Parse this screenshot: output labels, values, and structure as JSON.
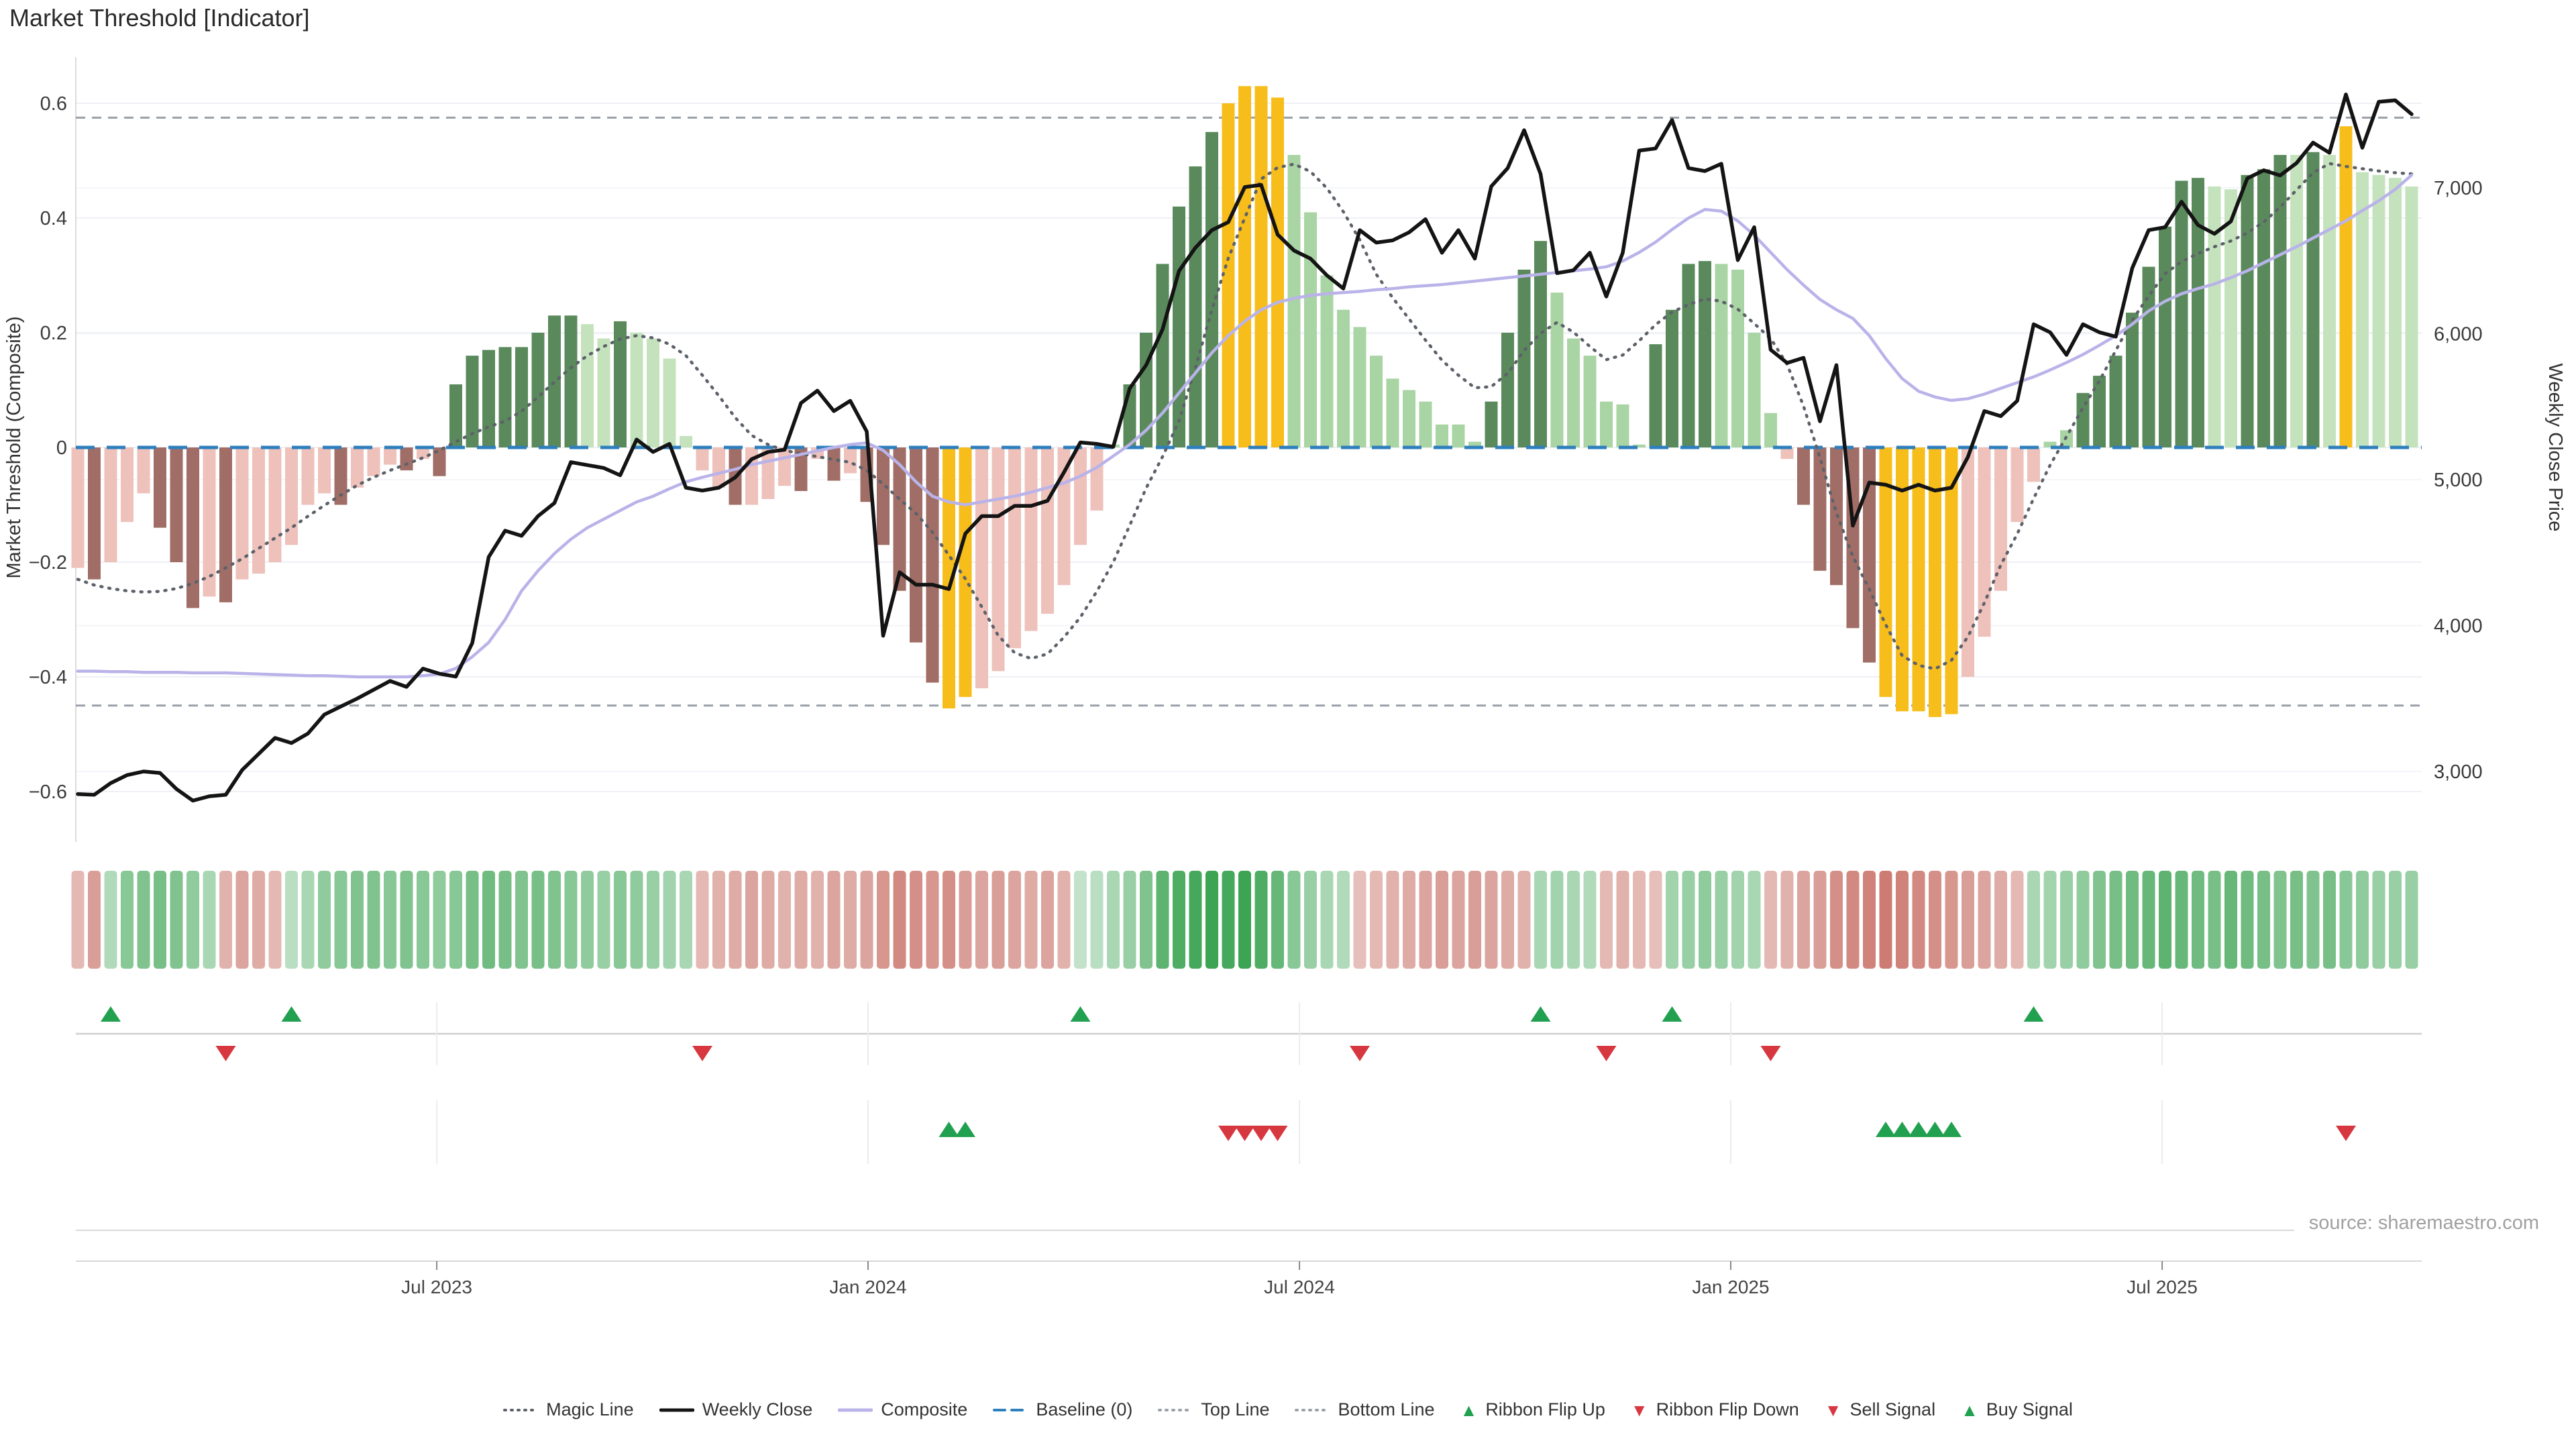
{
  "title": "Market Threshold [Indicator]",
  "source_credit": "source: sharemaestro.com",
  "axes": {
    "left_title": "Market Threshold (Composite)",
    "right_title": "Weekly Close Price",
    "left_ticks": [
      {
        "label": "0.6",
        "value": 0.6
      },
      {
        "label": "0.4",
        "value": 0.4
      },
      {
        "label": "0.2",
        "value": 0.2
      },
      {
        "label": "0",
        "value": 0
      },
      {
        "label": "−0.2",
        "value": -0.2
      },
      {
        "label": "−0.4",
        "value": -0.4
      },
      {
        "label": "−0.6",
        "value": -0.6
      }
    ],
    "right_ticks": [
      {
        "label": "7,000",
        "value": 7000
      },
      {
        "label": "6,000",
        "value": 6000
      },
      {
        "label": "5,000",
        "value": 5000
      },
      {
        "label": "4,000",
        "value": 4000
      },
      {
        "label": "3,000",
        "value": 3000
      }
    ],
    "x_ticks": [
      {
        "label": "Jul 2023",
        "week": 21.84
      },
      {
        "label": "Jan 2024",
        "week": 48.08
      },
      {
        "label": "Jul 2024",
        "week": 74.33
      },
      {
        "label": "Jan 2025",
        "week": 100.57
      },
      {
        "label": "Jul 2025",
        "week": 126.82
      }
    ]
  },
  "legend": [
    {
      "label": "Magic Line",
      "swatch": "dot",
      "color": "#5d6169"
    },
    {
      "label": "Weekly Close",
      "swatch": "solid",
      "color": "#141414"
    },
    {
      "label": "Composite",
      "swatch": "solid",
      "color": "#b9b3e9"
    },
    {
      "label": "Baseline (0)",
      "swatch": "dash",
      "color": "#2e7fbe"
    },
    {
      "label": "Top Line",
      "swatch": "dot",
      "color": "#9aa0a8"
    },
    {
      "label": "Bottom Line",
      "swatch": "dot",
      "color": "#9aa0a8"
    },
    {
      "label": "Ribbon Flip Up",
      "swatch": "up",
      "color": "#21a04f",
      "glyph": "▲"
    },
    {
      "label": "Ribbon Flip Down",
      "swatch": "down",
      "color": "#d7373f",
      "glyph": "▼"
    },
    {
      "label": "Sell Signal",
      "swatch": "down",
      "color": "#d7373f",
      "glyph": "▼"
    },
    {
      "label": "Buy Signal",
      "swatch": "up",
      "color": "#21a04f",
      "glyph": "▲"
    }
  ],
  "colors": {
    "bar_pale_pink": "#eec1bb",
    "bar_dark_mauve": "#a06e66",
    "bar_light_green": "#a9d4a3",
    "bar_pale_green": "#c4e3bd",
    "bar_dark_green": "#5a8a5c",
    "bar_yellow": "#f6bd1b",
    "close_line": "#141414",
    "composite_line": "#b9b3e9",
    "magic_line": "#5d6169",
    "baseline": "#2e7fbe",
    "band_line": "#9aa0a8",
    "grid": "#eef0f5",
    "grid_right": "#f4f5fa",
    "spine": "#dcdcdc",
    "panel_line": "#cfcfcf",
    "panel_grid": "#ececec",
    "axis_line": "#d8d8d8",
    "tick_text": "#3a3a3a",
    "source_text": "#a0a0a0",
    "signal_green": "#21a04f",
    "signal_red": "#d7373f",
    "ribbon_green": "#35a04d",
    "ribbon_red": "#bf5a4e"
  },
  "chart_data": {
    "type": "combo",
    "weeks": 143,
    "left_axis_range": [
      -0.69,
      0.68
    ],
    "right_axis_range": [
      2520,
      7900
    ],
    "top_line": 0.575,
    "bottom_line": -0.45,
    "baseline": 0,
    "grid": true,
    "legend_position": "bottom",
    "threshold_bars": {
      "values": [
        -0.21,
        -0.23,
        -0.2,
        -0.13,
        -0.08,
        -0.14,
        -0.2,
        -0.28,
        -0.26,
        -0.27,
        -0.23,
        -0.22,
        -0.2,
        -0.17,
        -0.1,
        -0.08,
        -0.1,
        -0.07,
        -0.05,
        -0.03,
        -0.04,
        -0.02,
        -0.05,
        0.11,
        0.16,
        0.17,
        0.175,
        0.175,
        0.2,
        0.23,
        0.23,
        0.215,
        0.19,
        0.22,
        0.2,
        0.19,
        0.155,
        0.02,
        -0.04,
        -0.07,
        -0.1,
        -0.1,
        -0.09,
        -0.067,
        -0.076,
        -0.02,
        -0.058,
        -0.045,
        -0.095,
        -0.17,
        -0.25,
        -0.34,
        -0.41,
        -0.455,
        -0.435,
        -0.42,
        -0.39,
        -0.35,
        -0.32,
        -0.29,
        -0.24,
        -0.17,
        -0.11,
        0.005,
        0.11,
        0.2,
        0.32,
        0.42,
        0.49,
        0.55,
        0.6,
        0.63,
        0.63,
        0.61,
        0.51,
        0.41,
        0.3,
        0.24,
        0.21,
        0.16,
        0.12,
        0.1,
        0.08,
        0.04,
        0.04,
        0.01,
        0.08,
        0.2,
        0.31,
        0.36,
        0.27,
        0.19,
        0.16,
        0.08,
        0.075,
        0.005,
        0.18,
        0.24,
        0.32,
        0.325,
        0.32,
        0.31,
        0.2,
        0.06,
        -0.02,
        -0.1,
        -0.215,
        -0.24,
        -0.315,
        -0.375,
        -0.435,
        -0.46,
        -0.46,
        -0.47,
        -0.465,
        -0.4,
        -0.33,
        -0.25,
        -0.13,
        -0.06,
        0.01,
        0.03,
        0.095,
        0.125,
        0.16,
        0.235,
        0.315,
        0.385,
        0.465,
        0.47,
        0.455,
        0.45,
        0.475,
        0.485,
        0.51,
        0.51,
        0.515,
        0.51,
        0.56,
        0.48,
        0.475,
        0.47,
        0.455
      ],
      "color_codes": "pPpppPPPpPppppppPpppPpPGGGGGGGGllGllllppPpppPpPpPPPPPyyppppppppgGGGGGGyyyyggggggggggggGGGGggggggGGGGggggpPPPPPyyyyypppppggGGGGGGGGllGGGlGlyllll",
      "color_legend": {
        "p": "bar_pale_pink",
        "P": "bar_dark_mauve",
        "g": "bar_light_green",
        "l": "bar_pale_green",
        "G": "bar_dark_green",
        "y": "bar_yellow"
      }
    },
    "weekly_close": [
      2845,
      2840,
      2920,
      2975,
      3000,
      2990,
      2880,
      2800,
      2830,
      2840,
      3010,
      3120,
      3230,
      3195,
      3260,
      3390,
      3445,
      3500,
      3560,
      3620,
      3580,
      3705,
      3670,
      3650,
      3880,
      4470,
      4650,
      4615,
      4750,
      4840,
      5120,
      5100,
      5080,
      5030,
      5275,
      5190,
      5245,
      4945,
      4925,
      4945,
      5015,
      5140,
      5190,
      5205,
      5525,
      5610,
      5470,
      5540,
      5330,
      3930,
      4365,
      4280,
      4280,
      4250,
      4630,
      4750,
      4750,
      4820,
      4820,
      4855,
      5050,
      5255,
      5245,
      5225,
      5625,
      5785,
      6030,
      6430,
      6590,
      6710,
      6765,
      7005,
      7020,
      6680,
      6570,
      6515,
      6400,
      6310,
      6710,
      6625,
      6640,
      6695,
      6785,
      6555,
      6710,
      6515,
      7010,
      7135,
      7395,
      7095,
      6415,
      6435,
      6555,
      6255,
      6555,
      7255,
      7270,
      7465,
      7135,
      7115,
      7165,
      6505,
      6730,
      5890,
      5800,
      5835,
      5400,
      5785,
      4685,
      4980,
      4965,
      4925,
      4965,
      4925,
      4945,
      5155,
      5470,
      5435,
      5540,
      6065,
      6010,
      5855,
      6065,
      6010,
      5980,
      6450,
      6710,
      6730,
      6905,
      6745,
      6685,
      6770,
      7065,
      7120,
      7085,
      7170,
      7310,
      7240,
      7640,
      7275,
      7590,
      7600,
      7505
    ],
    "composite": [
      -0.39,
      -0.39,
      -0.391,
      -0.391,
      -0.392,
      -0.392,
      -0.392,
      -0.393,
      -0.393,
      -0.393,
      -0.394,
      -0.395,
      -0.396,
      -0.397,
      -0.398,
      -0.398,
      -0.399,
      -0.4,
      -0.4,
      -0.4,
      -0.4,
      -0.398,
      -0.395,
      -0.385,
      -0.365,
      -0.34,
      -0.3,
      -0.25,
      -0.215,
      -0.185,
      -0.16,
      -0.14,
      -0.125,
      -0.11,
      -0.095,
      -0.085,
      -0.072,
      -0.06,
      -0.052,
      -0.045,
      -0.038,
      -0.03,
      -0.024,
      -0.018,
      -0.012,
      -0.006,
      0.0,
      0.005,
      0.008,
      -0.005,
      -0.03,
      -0.06,
      -0.085,
      -0.095,
      -0.1,
      -0.095,
      -0.09,
      -0.085,
      -0.078,
      -0.07,
      -0.062,
      -0.05,
      -0.035,
      -0.015,
      0.005,
      0.03,
      0.06,
      0.095,
      0.13,
      0.165,
      0.195,
      0.22,
      0.24,
      0.253,
      0.26,
      0.265,
      0.268,
      0.27,
      0.272,
      0.275,
      0.277,
      0.28,
      0.282,
      0.284,
      0.287,
      0.29,
      0.293,
      0.296,
      0.299,
      0.302,
      0.305,
      0.308,
      0.311,
      0.315,
      0.325,
      0.34,
      0.358,
      0.38,
      0.4,
      0.415,
      0.412,
      0.395,
      0.37,
      0.34,
      0.31,
      0.283,
      0.258,
      0.24,
      0.225,
      0.195,
      0.155,
      0.12,
      0.098,
      0.088,
      0.082,
      0.085,
      0.093,
      0.103,
      0.113,
      0.123,
      0.135,
      0.148,
      0.162,
      0.178,
      0.195,
      0.215,
      0.238,
      0.255,
      0.268,
      0.277,
      0.285,
      0.296,
      0.308,
      0.322,
      0.336,
      0.35,
      0.365,
      0.38,
      0.395,
      0.413,
      0.43,
      0.45,
      0.475
    ],
    "magic_line": [
      -0.23,
      -0.24,
      -0.246,
      -0.25,
      -0.252,
      -0.251,
      -0.246,
      -0.237,
      -0.225,
      -0.21,
      -0.194,
      -0.176,
      -0.158,
      -0.14,
      -0.12,
      -0.101,
      -0.083,
      -0.066,
      -0.052,
      -0.04,
      -0.029,
      -0.018,
      -0.005,
      0.01,
      0.024,
      0.036,
      0.046,
      0.063,
      0.088,
      0.114,
      0.139,
      0.16,
      0.176,
      0.189,
      0.195,
      0.191,
      0.18,
      0.16,
      0.126,
      0.09,
      0.052,
      0.021,
      0.005,
      -0.005,
      -0.011,
      -0.016,
      -0.021,
      -0.026,
      -0.04,
      -0.064,
      -0.09,
      -0.115,
      -0.148,
      -0.188,
      -0.229,
      -0.278,
      -0.328,
      -0.358,
      -0.368,
      -0.36,
      -0.331,
      -0.296,
      -0.251,
      -0.2,
      -0.136,
      -0.071,
      -0.016,
      0.046,
      0.139,
      0.24,
      0.33,
      0.4,
      0.468,
      0.488,
      0.494,
      0.481,
      0.452,
      0.411,
      0.362,
      0.302,
      0.261,
      0.224,
      0.187,
      0.152,
      0.126,
      0.104,
      0.106,
      0.129,
      0.169,
      0.199,
      0.218,
      0.201,
      0.176,
      0.153,
      0.161,
      0.186,
      0.214,
      0.236,
      0.249,
      0.259,
      0.255,
      0.241,
      0.216,
      0.19,
      0.145,
      0.072,
      -0.018,
      -0.114,
      -0.19,
      -0.247,
      -0.309,
      -0.363,
      -0.38,
      -0.386,
      -0.371,
      -0.33,
      -0.271,
      -0.205,
      -0.151,
      -0.089,
      -0.031,
      0.019,
      0.069,
      0.116,
      0.169,
      0.222,
      0.264,
      0.303,
      0.324,
      0.338,
      0.35,
      0.36,
      0.374,
      0.393,
      0.419,
      0.449,
      0.479,
      0.495,
      0.49,
      0.486,
      0.482,
      0.479,
      0.477
    ],
    "ribbon": [
      -0.3,
      -0.5,
      0.25,
      0.5,
      0.55,
      0.6,
      0.55,
      0.45,
      0.3,
      -0.35,
      -0.45,
      -0.4,
      -0.3,
      0.2,
      0.3,
      0.45,
      0.5,
      0.55,
      0.55,
      0.5,
      0.55,
      0.5,
      0.45,
      0.5,
      0.6,
      0.65,
      0.6,
      0.55,
      0.6,
      0.55,
      0.5,
      0.45,
      0.4,
      0.5,
      0.45,
      0.4,
      0.35,
      0.3,
      -0.3,
      -0.35,
      -0.4,
      -0.45,
      -0.4,
      -0.35,
      -0.4,
      -0.35,
      -0.45,
      -0.4,
      -0.45,
      -0.55,
      -0.65,
      -0.6,
      -0.55,
      -0.6,
      -0.5,
      -0.45,
      -0.5,
      -0.45,
      -0.4,
      -0.45,
      -0.35,
      0.15,
      0.2,
      0.3,
      0.4,
      0.55,
      0.75,
      0.85,
      0.9,
      0.95,
      0.9,
      0.95,
      0.85,
      0.7,
      0.5,
      0.4,
      0.3,
      0.25,
      -0.25,
      -0.3,
      -0.35,
      -0.4,
      -0.45,
      -0.5,
      -0.45,
      -0.5,
      -0.45,
      -0.4,
      -0.35,
      0.3,
      0.35,
      0.3,
      0.25,
      -0.3,
      -0.35,
      -0.3,
      -0.25,
      0.35,
      0.4,
      0.45,
      0.4,
      0.35,
      0.3,
      -0.3,
      -0.35,
      -0.45,
      -0.5,
      -0.6,
      -0.65,
      -0.7,
      -0.75,
      -0.7,
      -0.65,
      -0.6,
      -0.55,
      -0.5,
      -0.45,
      -0.4,
      -0.3,
      0.3,
      0.35,
      0.4,
      0.45,
      0.55,
      0.6,
      0.65,
      0.7,
      0.75,
      0.7,
      0.65,
      0.6,
      0.7,
      0.65,
      0.6,
      0.55,
      0.6,
      0.55,
      0.6,
      0.5,
      0.45,
      0.4,
      0.4,
      0.4
    ],
    "signals": {
      "ribbon_flip_up_weeks": [
        2,
        13,
        61,
        89,
        97,
        119
      ],
      "ribbon_flip_down_weeks": [
        9,
        38,
        78,
        93,
        103
      ],
      "buy_signal_weeks": [
        53,
        54,
        110,
        111,
        112,
        113,
        114
      ],
      "sell_signal_weeks": [
        70,
        71,
        72,
        73,
        138
      ]
    }
  }
}
